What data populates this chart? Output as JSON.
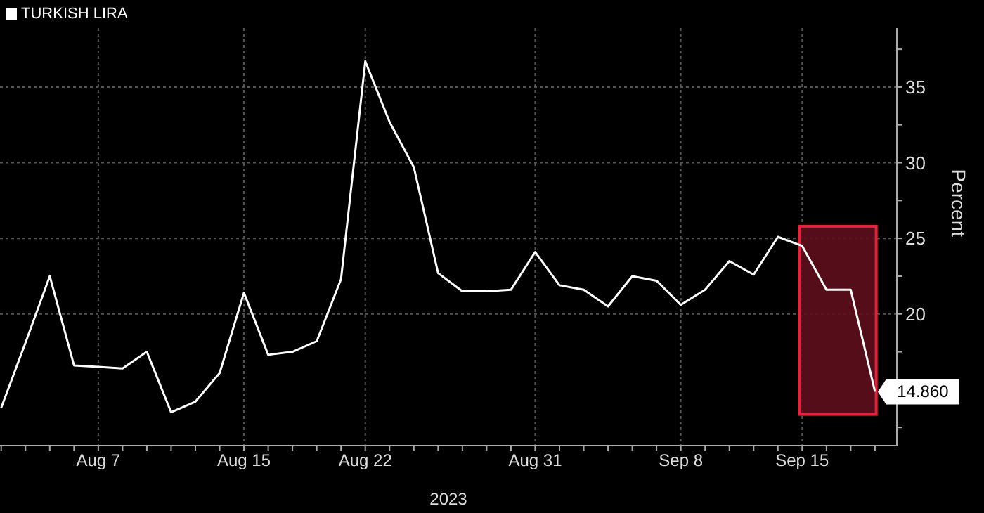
{
  "chart_data": {
    "type": "line",
    "xlabel": "2023",
    "ylabel": "Percent",
    "categories": [
      null,
      null,
      null,
      null,
      "Aug 7",
      null,
      null,
      null,
      null,
      null,
      "Aug 15",
      null,
      null,
      null,
      null,
      "Aug 22",
      null,
      null,
      null,
      null,
      null,
      null,
      "Aug 31",
      null,
      null,
      null,
      null,
      null,
      "Sep 8",
      null,
      null,
      null,
      null,
      "Sep 15",
      null,
      null,
      null
    ],
    "series": [
      {
        "name": "TURKISH LIRA",
        "color": "#ffffff",
        "values": [
          13.8,
          18.1,
          22.5,
          16.6,
          16.5,
          16.4,
          17.5,
          13.5,
          14.2,
          16.1,
          21.4,
          17.3,
          17.5,
          18.2,
          22.3,
          36.7,
          32.7,
          29.7,
          22.7,
          21.5,
          21.5,
          21.6,
          24.1,
          21.9,
          21.6,
          20.5,
          22.5,
          22.2,
          20.6,
          21.6,
          23.5,
          22.6,
          25.1,
          24.5,
          21.6,
          21.6,
          14.86
        ],
        "value_labels": [
          null,
          null,
          null,
          null,
          null,
          null,
          null,
          null,
          null,
          null,
          null,
          null,
          null,
          null,
          null,
          null,
          null,
          null,
          null,
          null,
          null,
          null,
          null,
          null,
          null,
          null,
          null,
          null,
          null,
          null,
          null,
          null,
          null,
          null,
          null,
          null,
          "14.860"
        ]
      }
    ],
    "ylim": [
      11.3,
      38.9
    ],
    "yticks": [
      {
        "value": 12.5,
        "label": null
      },
      {
        "value": 15,
        "label": null
      },
      {
        "value": 17.5,
        "label": null
      },
      20,
      {
        "value": 22.5,
        "label": null
      },
      25,
      {
        "value": 27.5,
        "label": null
      },
      30,
      {
        "value": 32.5,
        "label": null
      },
      35,
      {
        "value": 37.5,
        "label": null
      }
    ],
    "grid": true,
    "legend": "top left",
    "marker": "none",
    "line_style": "solid"
  }
}
